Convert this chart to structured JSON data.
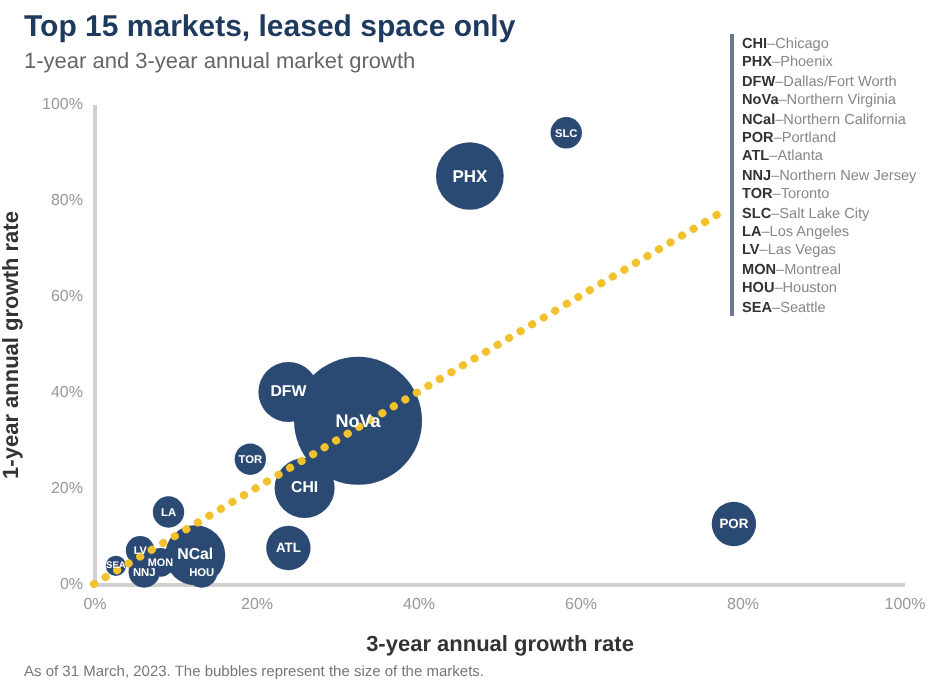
{
  "chart_data": {
    "type": "bubble",
    "title": "Top 15 markets, leased space only",
    "subtitle": "1-year and 3-year annual market growth",
    "xlabel": "3-year annual growth rate",
    "ylabel": "1-year annual growth rate",
    "xlim": [
      0,
      100
    ],
    "ylim": [
      0,
      100
    ],
    "xticks": [
      {
        "value": 0,
        "label": "0%"
      },
      {
        "value": 20,
        "label": "20%"
      },
      {
        "value": 40,
        "label": "40%"
      },
      {
        "value": 60,
        "label": "60%"
      },
      {
        "value": 80,
        "label": "80%"
      },
      {
        "value": 100,
        "label": "100%"
      }
    ],
    "yticks": [
      {
        "value": 0,
        "label": "0%"
      },
      {
        "value": 20,
        "label": "20%"
      },
      {
        "value": 40,
        "label": "40%"
      },
      {
        "value": 60,
        "label": "60%"
      },
      {
        "value": 80,
        "label": "80%"
      },
      {
        "value": 100,
        "label": "100%"
      }
    ],
    "grid": false,
    "legend": false,
    "series": [
      {
        "name": "NoVa",
        "color": "#2b4a73",
        "x": [
          32.6
        ],
        "values": [
          34
        ],
        "sizes": [
          1
        ]
      },
      {
        "name": "PHX",
        "color": "#2b4a73",
        "x": [
          46.4
        ],
        "values": [
          85
        ],
        "sizes": [
          0.28
        ]
      },
      {
        "name": "SLC",
        "color": "#2b4a73",
        "x": [
          58.3
        ],
        "values": [
          94
        ],
        "sizes": [
          0.06
        ]
      },
      {
        "name": "DFW",
        "color": "#2b4a73",
        "x": [
          24
        ],
        "values": [
          40
        ],
        "sizes": [
          0.22
        ]
      },
      {
        "name": "CHI",
        "color": "#2b4a73",
        "x": [
          26
        ],
        "values": [
          20
        ],
        "sizes": [
          0.22
        ]
      },
      {
        "name": "TOR",
        "color": "#2b4a73",
        "x": [
          19.3
        ],
        "values": [
          26
        ],
        "sizes": [
          0.06
        ]
      },
      {
        "name": "LA",
        "color": "#2b4a73",
        "x": [
          9.2
        ],
        "values": [
          15
        ],
        "sizes": [
          0.06
        ]
      },
      {
        "name": "ATL",
        "color": "#2b4a73",
        "x": [
          24
        ],
        "values": [
          7.5
        ],
        "sizes": [
          0.12
        ]
      },
      {
        "name": "NCal",
        "color": "#2b4a73",
        "x": [
          12.5
        ],
        "values": [
          6
        ],
        "sizes": [
          0.22
        ]
      },
      {
        "name": "HOU",
        "color": "#2b4a73",
        "x": [
          13.3
        ],
        "values": [
          2.5
        ],
        "sizes": [
          0.06
        ]
      },
      {
        "name": "LV",
        "color": "#2b4a73",
        "x": [
          5.7
        ],
        "values": [
          7
        ],
        "sizes": [
          0.05
        ]
      },
      {
        "name": "MON",
        "color": "#2b4a73",
        "x": [
          8.2
        ],
        "values": [
          4.5
        ],
        "sizes": [
          0.05
        ]
      },
      {
        "name": "NNJ",
        "color": "#2b4a73",
        "x": [
          6.2
        ],
        "values": [
          2.5
        ],
        "sizes": [
          0.06
        ]
      },
      {
        "name": "SEA",
        "color": "#2b4a73",
        "x": [
          2.7
        ],
        "values": [
          3.8
        ],
        "sizes": [
          0.025
        ]
      },
      {
        "name": "POR",
        "color": "#2b4a73",
        "x": [
          79
        ],
        "values": [
          12.5
        ],
        "sizes": [
          0.12
        ]
      },
      {
        "type": "line",
        "color": "#f2c12e",
        "line_style": "dotted",
        "x": [
          0,
          78
        ],
        "values": [
          0,
          78
        ]
      }
    ],
    "annotations": [
      "CHI–Chicago",
      "PHX–Phoenix",
      "DFW–Dallas/Fort Worth",
      "NoVa–Northern Virginia",
      "NCal–Northern California",
      "POR–Portland",
      "ATL–Atlanta",
      "NNJ–Northern New Jersey",
      "TOR–Toronto",
      "SLC–Salt Lake City",
      "LA–Los Angeles",
      "LV–Las Vegas",
      "MON–Montreal",
      "HOU–Houston",
      "SEA–Seattle",
      "As of 31 March, 2023. The bubbles represent the size of the markets."
    ]
  }
}
